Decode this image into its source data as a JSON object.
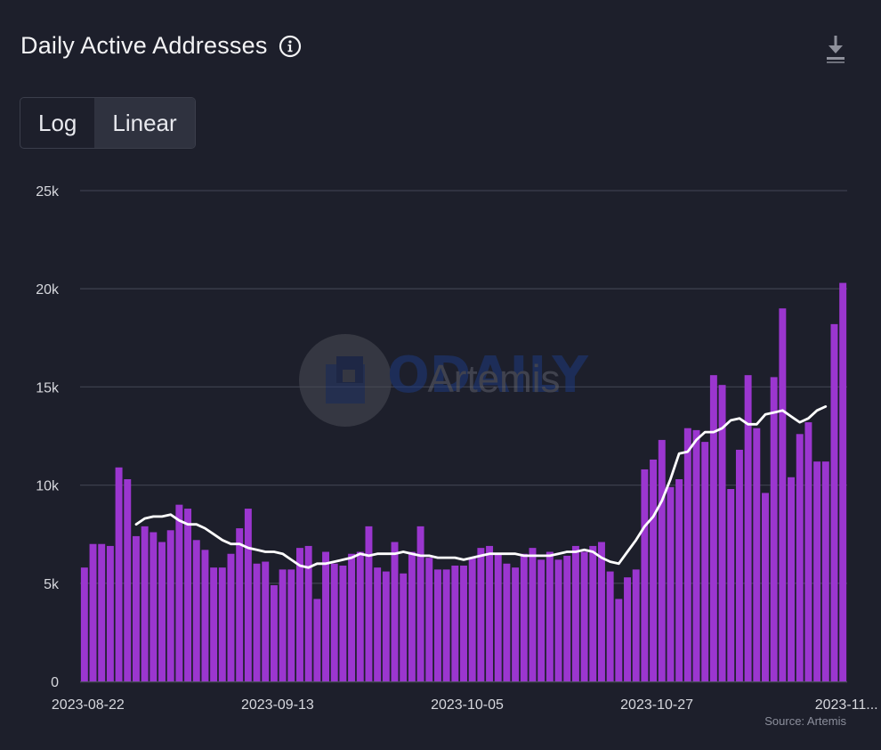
{
  "header": {
    "title": "Daily Active Addresses",
    "info_icon": "info-circle-icon",
    "download_icon": "download-icon"
  },
  "scale_toggle": {
    "options": [
      "Log",
      "Linear"
    ],
    "selected": "Linear"
  },
  "watermark": {
    "text_main": "ODAILY",
    "text_sub": "Artemis"
  },
  "source_label": "Source: Artemis",
  "colors": {
    "background": "#1d1f2b",
    "bar": "#9b36cf",
    "line": "#ffffff",
    "grid": "#3c3f4c"
  },
  "chart_data": {
    "type": "bar",
    "title": "Daily Active Addresses",
    "y_ticks": [
      0,
      5000,
      10000,
      15000,
      20000,
      25000
    ],
    "y_tick_labels": [
      "0",
      "5k",
      "10k",
      "15k",
      "20k",
      "25k"
    ],
    "ylim": [
      0,
      25000
    ],
    "x_tick_labels": [
      "2023-08-22",
      "2023-09-13",
      "2023-10-05",
      "2023-10-27",
      "2023-11..."
    ],
    "x_tick_indices": [
      0,
      22,
      44,
      66,
      88
    ],
    "grid": true,
    "series": [
      {
        "kind": "bar",
        "values": [
          5800,
          7000,
          7000,
          6900,
          10900,
          10300,
          7400,
          7900,
          7600,
          7100,
          7700,
          9000,
          8800,
          7200,
          6700,
          5800,
          5800,
          6500,
          7800,
          8800,
          6000,
          6100,
          4900,
          5700,
          5700,
          6800,
          6900,
          4200,
          6600,
          6000,
          5900,
          6500,
          6600,
          7900,
          5800,
          5600,
          7100,
          5500,
          6600,
          7900,
          6300,
          5700,
          5700,
          5900,
          5900,
          6300,
          6800,
          6900,
          6500,
          6000,
          5800,
          6500,
          6800,
          6200,
          6600,
          6200,
          6400,
          6900,
          6600,
          6900,
          7100,
          5600,
          4200,
          5300,
          5700,
          10800,
          11300,
          12300,
          9900,
          10300,
          12900,
          12800,
          12200,
          15600,
          15100,
          9800,
          11800,
          15600,
          12900,
          9600,
          15500,
          19000,
          10400,
          12600,
          13200,
          11200,
          11200,
          18200,
          20300
        ]
      },
      {
        "kind": "line",
        "start_index": 6,
        "values": [
          8000,
          8300,
          8400,
          8400,
          8500,
          8200,
          8000,
          8000,
          7800,
          7500,
          7200,
          7000,
          7000,
          6800,
          6700,
          6600,
          6600,
          6500,
          6200,
          5900,
          5800,
          6000,
          6000,
          6100,
          6200,
          6300,
          6500,
          6400,
          6500,
          6500,
          6500,
          6600,
          6500,
          6400,
          6400,
          6300,
          6300,
          6300,
          6200,
          6300,
          6400,
          6500,
          6500,
          6500,
          6500,
          6400,
          6400,
          6400,
          6400,
          6500,
          6600,
          6600,
          6700,
          6600,
          6300,
          6100,
          6000,
          6600,
          7200,
          7900,
          8400,
          9200,
          10300,
          11600,
          11700,
          12300,
          12700,
          12700,
          12900,
          13300,
          13400,
          13100,
          13100,
          13600,
          13700,
          13800,
          13500,
          13200,
          13400,
          13800,
          14000
        ]
      }
    ]
  }
}
